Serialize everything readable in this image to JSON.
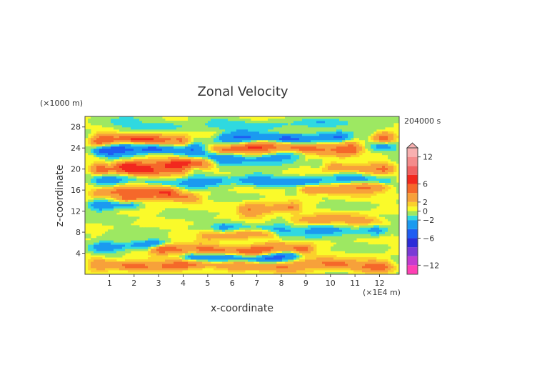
{
  "chart_data": {
    "type": "heatmap",
    "title": "Zonal Velocity",
    "xlabel": "x-coordinate",
    "ylabel": "z-coordinate",
    "x_unit": "(×1E4 m)",
    "y_unit": "(×1000 m)",
    "time_label": "204000 s",
    "xlim": [
      0,
      12.8
    ],
    "ylim": [
      0,
      30
    ],
    "x_ticks": [
      1,
      2,
      3,
      4,
      5,
      6,
      7,
      8,
      9,
      10,
      11,
      12
    ],
    "y_ticks": [
      4,
      8,
      12,
      16,
      20,
      24,
      28
    ],
    "colorbar": {
      "min": -14,
      "max": 14,
      "tick_values": [
        12,
        6,
        2,
        0,
        -2,
        -6,
        -12
      ],
      "tick_labels": [
        "12",
        "6",
        "2",
        "0",
        "−2",
        "−6",
        "−12"
      ],
      "levels": [
        {
          "lo": -14,
          "hi": -12,
          "color": "#ff3fb4"
        },
        {
          "lo": -12,
          "hi": -10,
          "color": "#c43bd0"
        },
        {
          "lo": -10,
          "hi": -8,
          "color": "#7a3ad6"
        },
        {
          "lo": -8,
          "hi": -6,
          "color": "#2c2cd8"
        },
        {
          "lo": -6,
          "hi": -4,
          "color": "#1f5df2"
        },
        {
          "lo": -4,
          "hi": -2,
          "color": "#1b9af0"
        },
        {
          "lo": -2,
          "hi": -1,
          "color": "#2fd9e0"
        },
        {
          "lo": -1,
          "hi": 0,
          "color": "#9de862"
        },
        {
          "lo": 0,
          "hi": 1,
          "color": "#fafa2a"
        },
        {
          "lo": 1,
          "hi": 2,
          "color": "#fbd02c"
        },
        {
          "lo": 2,
          "hi": 4,
          "color": "#f7a13a"
        },
        {
          "lo": 4,
          "hi": 6,
          "color": "#f5682a"
        },
        {
          "lo": 6,
          "hi": 8,
          "color": "#f2281e"
        },
        {
          "lo": 8,
          "hi": 10,
          "color": "#f06262"
        },
        {
          "lo": 10,
          "hi": 12,
          "color": "#f48c8c"
        },
        {
          "lo": 12,
          "hi": 14,
          "color": "#f8b0b0"
        }
      ]
    },
    "grid": false,
    "legend": "colorbar-right",
    "bands": [
      {
        "z": 1.8,
        "amp": 5.0,
        "x0": 0.0,
        "x1": 12.8
      },
      {
        "z": 3.2,
        "amp": -6.0,
        "x0": 3.8,
        "x1": 9.0
      },
      {
        "z": 4.6,
        "amp": 6.0,
        "x0": 2.5,
        "x1": 9.5
      },
      {
        "z": 5.6,
        "amp": -3.0,
        "x0": 0.0,
        "x1": 3.5
      },
      {
        "z": 7.5,
        "amp": 4.0,
        "x0": 4.5,
        "x1": 8.0
      },
      {
        "z": 8.5,
        "amp": -3.0,
        "x0": 5.0,
        "x1": 12.5
      },
      {
        "z": 10.2,
        "amp": 3.5,
        "x0": 8.0,
        "x1": 12.5
      },
      {
        "z": 12.5,
        "amp": 4.5,
        "x0": 6.0,
        "x1": 9.0
      },
      {
        "z": 13.4,
        "amp": -3.5,
        "x0": 0.0,
        "x1": 2.5
      },
      {
        "z": 14.5,
        "amp": 4.0,
        "x0": 1.0,
        "x1": 5.0
      },
      {
        "z": 15.8,
        "amp": 5.0,
        "x0": 0.0,
        "x1": 4.0
      },
      {
        "z": 16.3,
        "amp": 4.5,
        "x0": 8.5,
        "x1": 12.8
      },
      {
        "z": 17.8,
        "amp": -3.0,
        "x0": 0.0,
        "x1": 12.8
      },
      {
        "z": 19.7,
        "amp": 5.5,
        "x0": 0.0,
        "x1": 4.5
      },
      {
        "z": 20.2,
        "amp": 4.0,
        "x0": 9.5,
        "x1": 12.8
      },
      {
        "z": 21.0,
        "amp": 6.0,
        "x0": 1.0,
        "x1": 5.5
      },
      {
        "z": 22.0,
        "amp": -3.5,
        "x0": 4.5,
        "x1": 9.0
      },
      {
        "z": 23.7,
        "amp": -5.5,
        "x0": 0.0,
        "x1": 5.0
      },
      {
        "z": 24.0,
        "amp": 6.0,
        "x0": 5.0,
        "x1": 11.5
      },
      {
        "z": 24.2,
        "amp": -4.5,
        "x0": 11.5,
        "x1": 12.8
      },
      {
        "z": 25.5,
        "amp": 6.5,
        "x0": 0.0,
        "x1": 4.5
      },
      {
        "z": 25.9,
        "amp": -4.5,
        "x0": 5.0,
        "x1": 11.0
      },
      {
        "z": 25.7,
        "amp": 5.5,
        "x0": 11.5,
        "x1": 12.8
      },
      {
        "z": 28.5,
        "amp": -1.5,
        "x0": 0.0,
        "x1": 12.8
      }
    ]
  }
}
